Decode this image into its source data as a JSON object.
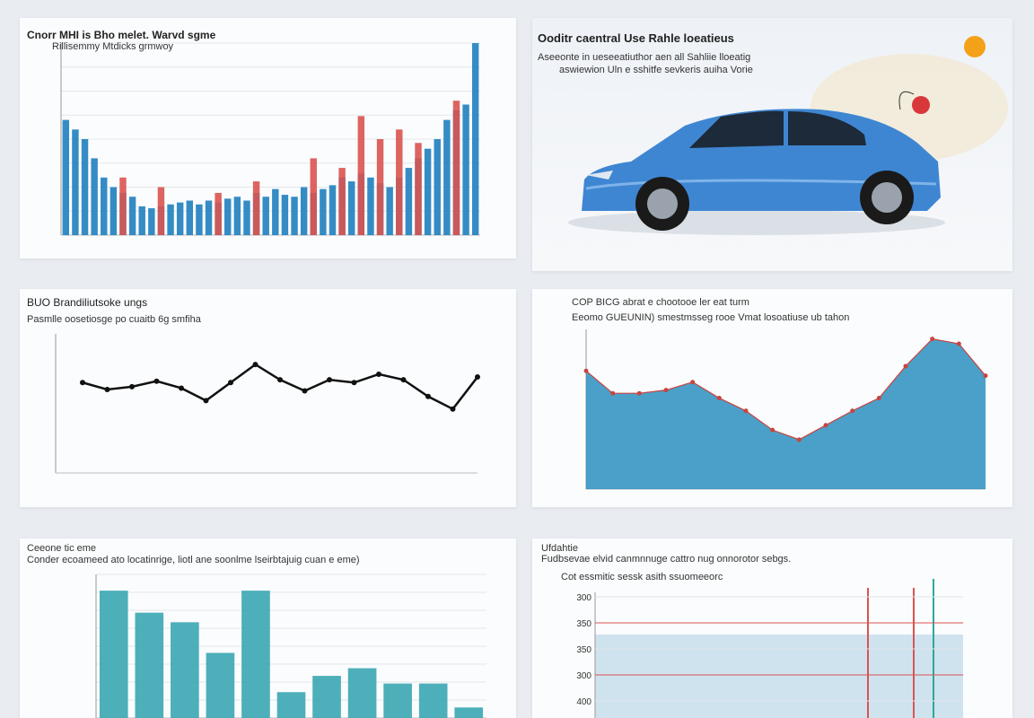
{
  "chart_data": [
    {
      "type": "bar",
      "title": "Cnorr MHI is Bho melet. Warvd sgme",
      "subtitle": "Rillisemmy Mtdicks grmwoy",
      "ylim": [
        0,
        100
      ],
      "grid": true,
      "series": [
        {
          "name": "A",
          "color": "#1f7fbf",
          "values": [
            60,
            55,
            50,
            40,
            30,
            25,
            22,
            20,
            15,
            14,
            15,
            16,
            17,
            18,
            16,
            18,
            17,
            19,
            20,
            18,
            22,
            20,
            24,
            21,
            20,
            25,
            22,
            24,
            26,
            30,
            28,
            32,
            30,
            27,
            25,
            30,
            35,
            40,
            45,
            50,
            60,
            65,
            68,
            100
          ]
        },
        {
          "name": "B",
          "color": "#d9534f",
          "values": [
            null,
            null,
            null,
            null,
            null,
            null,
            30,
            null,
            null,
            null,
            25,
            null,
            null,
            null,
            null,
            null,
            22,
            null,
            null,
            null,
            28,
            null,
            null,
            null,
            null,
            null,
            40,
            null,
            null,
            35,
            null,
            62,
            null,
            50,
            null,
            55,
            null,
            48,
            null,
            null,
            null,
            70,
            null,
            null
          ]
        }
      ]
    },
    {
      "type": "line",
      "title": "BUO Brandiliutsoke ungs",
      "subtitle": "Pasmlle oosetiosge po cuaitb 6g smfiha",
      "ylim": [
        0,
        100
      ],
      "color": "#111111",
      "values": [
        65,
        60,
        62,
        66,
        61,
        52,
        65,
        78,
        67,
        59,
        67,
        65,
        71,
        67,
        55,
        46,
        69
      ]
    },
    {
      "type": "area",
      "title": "COP BICG abrat e chootooe ler eat turm",
      "subtitle": "Eeomo GUEUNIN) smestmsseg rooe Vmat losoatiuse ub tahon",
      "ylim": [
        0,
        100
      ],
      "color": "#2a8fc0",
      "values": [
        74,
        60,
        60,
        62,
        67,
        57,
        49,
        37,
        31,
        40,
        49,
        57,
        77,
        94,
        91,
        71
      ]
    },
    {
      "type": "bar",
      "title": "Ceeone tic eme",
      "subtitle": "Conder ecoameed ato locatinrige, liotl ane soonlme lseirbtajuig cuan e eme)",
      "ylim": [
        0,
        150
      ],
      "grid": true,
      "series": [
        {
          "name": "A",
          "color": "#3aa6b3",
          "values": [
            133,
            110,
            100,
            68,
            133,
            27,
            44,
            52,
            36,
            36,
            11
          ]
        }
      ]
    }
  ],
  "panels": {
    "image": {
      "title": "Ooditr caentral Use Rahle loeatieus",
      "subtitle": "Aseeonte in ueseeatiuthor aen all Sahliie lloeatig",
      "note": "aswiewion Uln e sshitfe sevkeris auiha Vorie"
    },
    "band": {
      "title": "Ufdahtie",
      "subtitle": "Fudbsevae elvid canmnnuge cattro nug onnorotor sebgs.",
      "note": "Cot essmitic sessk asith ssuomeeorc",
      "row_labels": [
        "300",
        "350",
        "350",
        "300",
        "400"
      ]
    }
  }
}
